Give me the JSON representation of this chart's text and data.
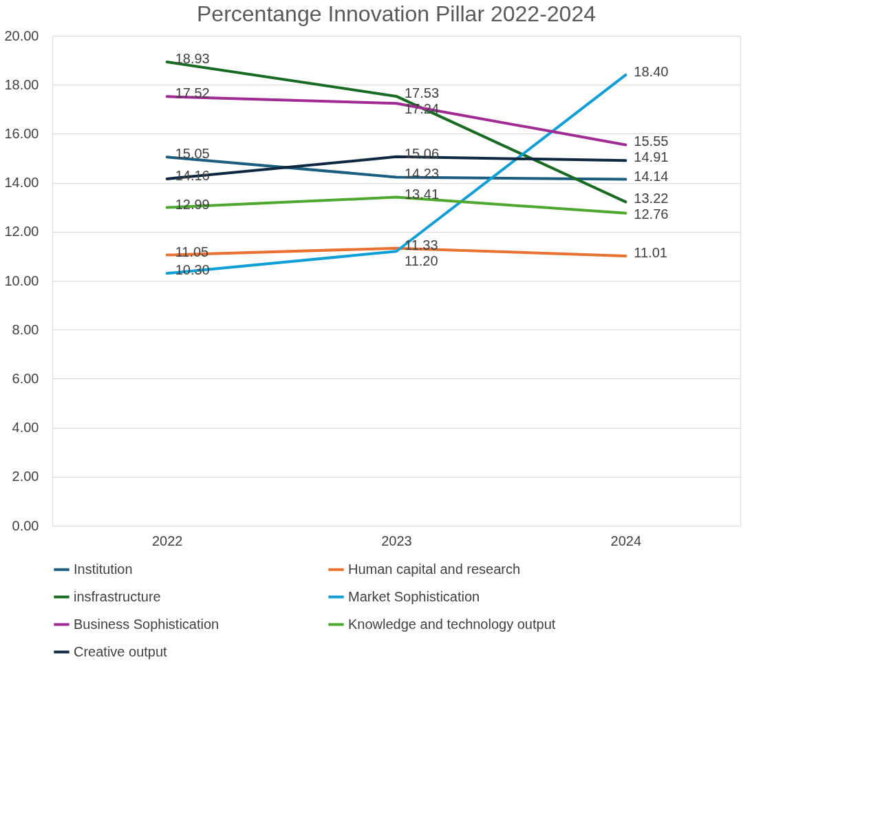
{
  "chart_data": {
    "type": "line",
    "title": "Percentange Innovation Pillar 2022-2024",
    "categories": [
      "2022",
      "2023",
      "2024"
    ],
    "series": [
      {
        "name": "Institution",
        "color": "#1b5e80",
        "values": [
          15.05,
          14.23,
          14.14
        ],
        "value_labels": [
          "15.05",
          "14.23",
          "14.14"
        ]
      },
      {
        "name": "Human capital and research",
        "color": "#e97132",
        "values": [
          11.05,
          11.33,
          11.01
        ],
        "value_labels": [
          "11.05",
          "11.33",
          "11.01"
        ]
      },
      {
        "name": "insfrastructure",
        "color": "#196b24",
        "values": [
          18.93,
          17.53,
          13.22
        ],
        "value_labels": [
          "18.93",
          "17.53",
          "13.22"
        ]
      },
      {
        "name": "Market Sophistication",
        "color": "#0f9ed5",
        "values": [
          10.3,
          11.2,
          18.4
        ],
        "value_labels": [
          "10.30",
          "11.20",
          "18.40"
        ]
      },
      {
        "name": "Business Sophistication",
        "color": "#a02b93",
        "values": [
          17.52,
          17.24,
          15.55
        ],
        "value_labels": [
          "17.52",
          "17.24",
          "15.55"
        ]
      },
      {
        "name": "Knowledge and technology output",
        "color": "#4ea72e",
        "values": [
          12.99,
          13.41,
          12.76
        ],
        "value_labels": [
          "12.99",
          "13.41",
          "12.76"
        ]
      },
      {
        "name": "Creative output",
        "color": "#0e2841",
        "values": [
          14.16,
          15.06,
          14.91
        ],
        "value_labels": [
          "14.16",
          "15.06",
          "14.91"
        ]
      }
    ],
    "ylim": [
      0,
      20
    ],
    "yticks": [
      {
        "value": 0,
        "label": "0.00"
      },
      {
        "value": 2,
        "label": "2.00"
      },
      {
        "value": 4,
        "label": "4.00"
      },
      {
        "value": 6,
        "label": "6.00"
      },
      {
        "value": 8,
        "label": "8.00"
      },
      {
        "value": 10,
        "label": "10.00"
      },
      {
        "value": 12,
        "label": "12.00"
      },
      {
        "value": 14,
        "label": "14.00"
      },
      {
        "value": 16,
        "label": "16.00"
      },
      {
        "value": 18,
        "label": "18.00"
      },
      {
        "value": 20,
        "label": "20.00"
      }
    ],
    "grid": "y",
    "legend": "bottom",
    "marker": "none",
    "line_style": "solid"
  }
}
